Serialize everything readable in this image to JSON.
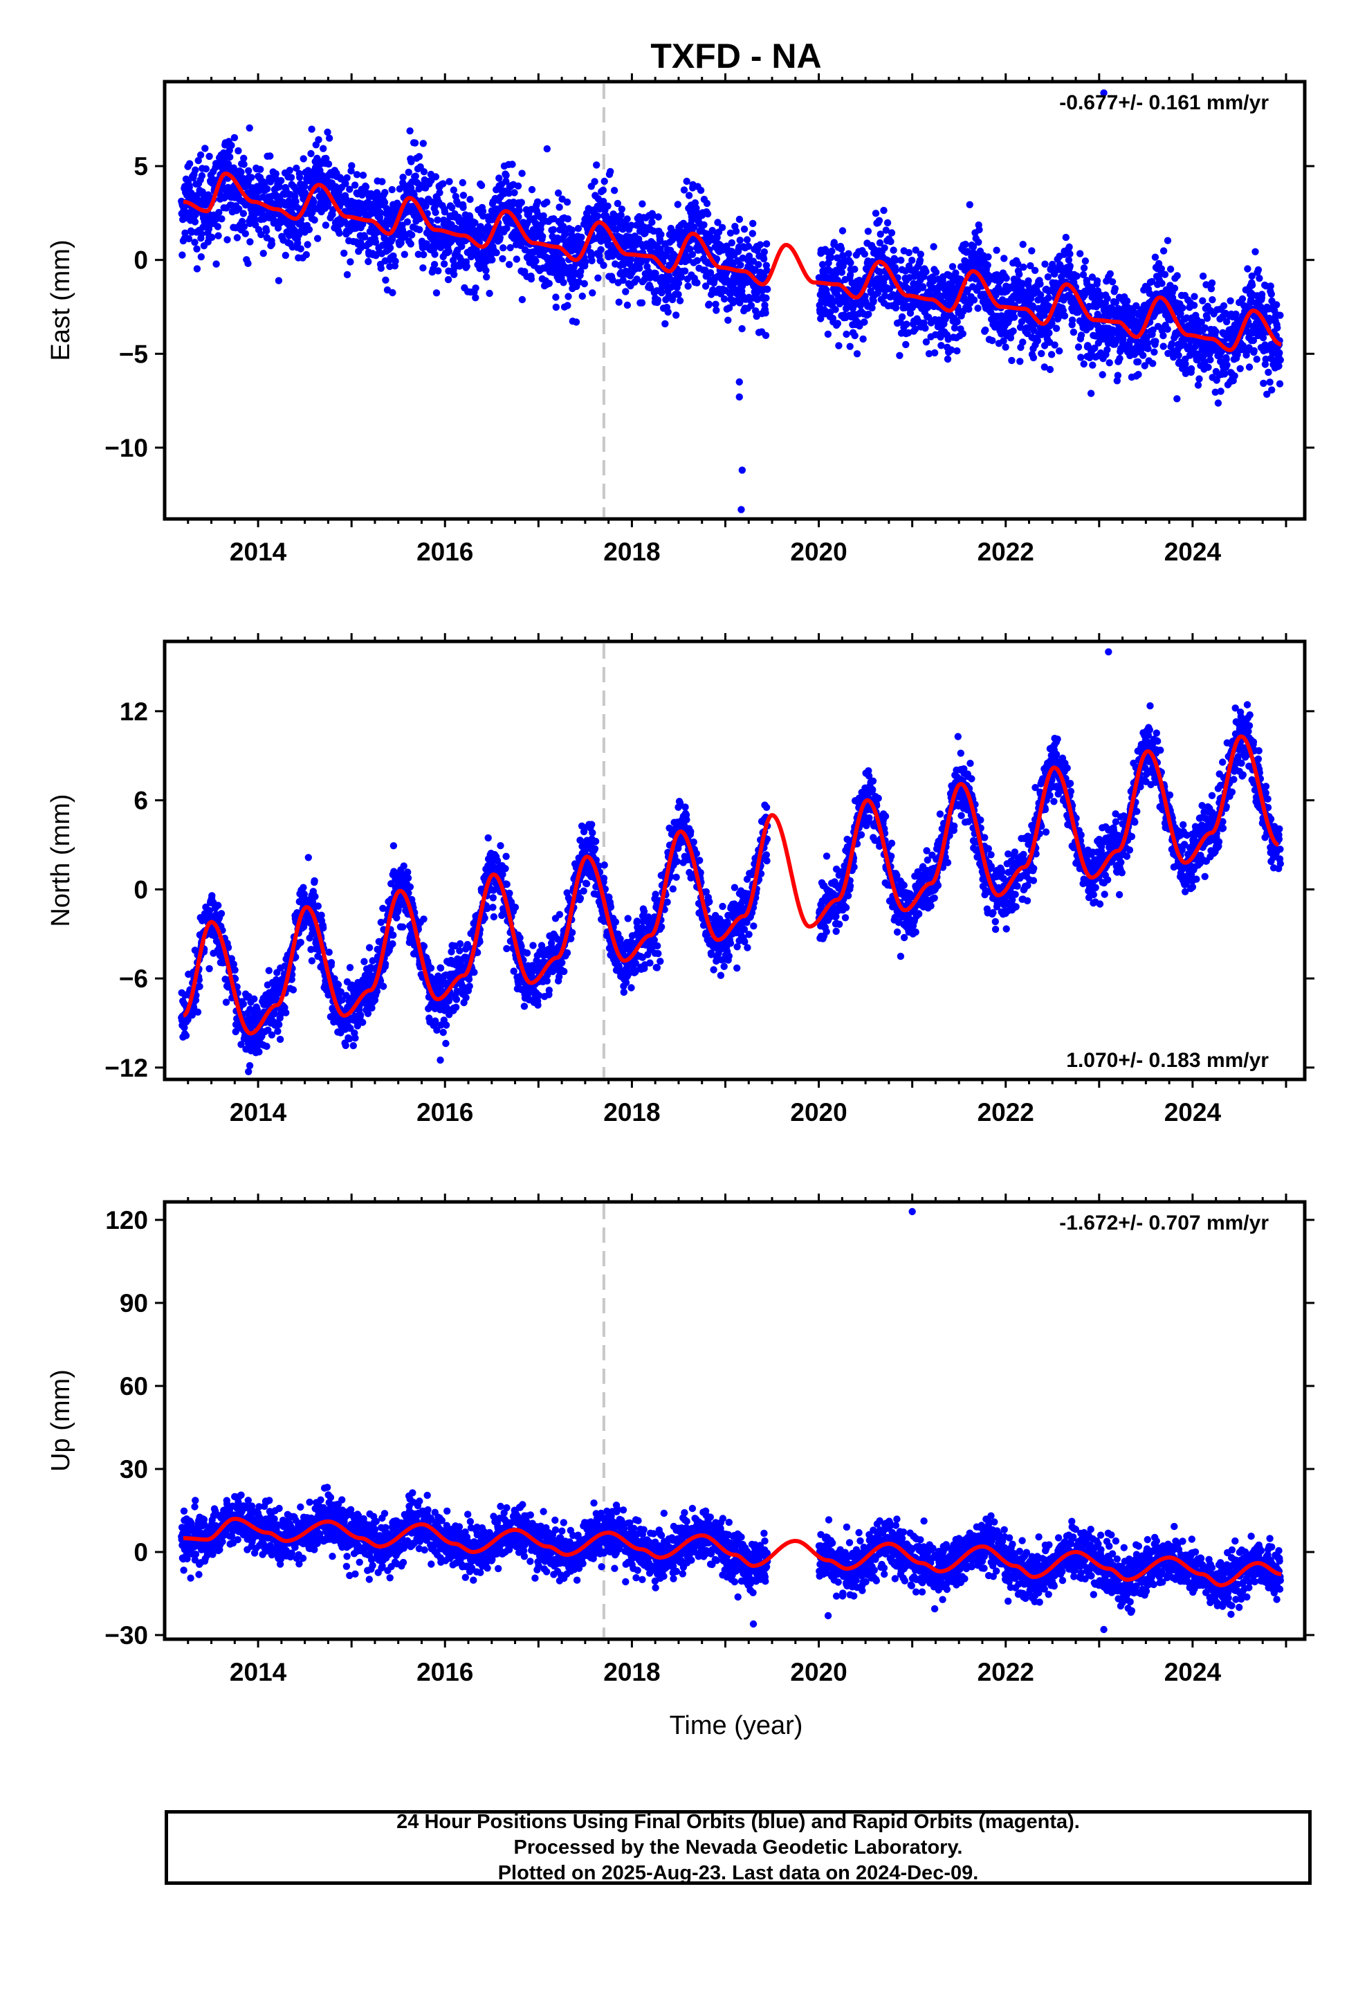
{
  "title": "TXFD - NA",
  "xlabel": "Time (year)",
  "caption": [
    "24 Hour Positions Using Final Orbits (blue) and Rapid Orbits (magenta).",
    "Processed by the Nevada Geodetic Laboratory.",
    "Plotted on 2025-Aug-23. Last data on 2024-Dec-09."
  ],
  "colors": {
    "final_orbits": "#0000ff",
    "model_fit": "#ff0000",
    "marker_line": "#c8c8c8"
  },
  "chart_data": [
    {
      "type": "scatter",
      "component": "East",
      "ylabel": "East (mm)",
      "rate_label": "-0.677+/- 0.161 mm/yr",
      "xlim": [
        2013.0,
        2025.2
      ],
      "ylim": [
        -13.8,
        9.5
      ],
      "yticks": [
        {
          "v": 5,
          "t": "5"
        },
        {
          "v": 0,
          "t": "0"
        },
        {
          "v": -5,
          "t": "−5"
        },
        {
          "v": -10,
          "t": "−10"
        }
      ],
      "marker_year": 2017.7,
      "trend": {
        "y2013": 3.0,
        "rate": -0.677
      },
      "seasonal_amp": 1.6,
      "seasonal_peak": 0.65,
      "scatter": 1.2,
      "gap": [
        2019.45,
        2020.0
      ],
      "outliers": [
        [
          2019.15,
          -6.5
        ],
        [
          2019.15,
          -7.3
        ],
        [
          2019.18,
          -11.2
        ],
        [
          2019.17,
          -13.3
        ],
        [
          2023.05,
          8.9
        ]
      ],
      "smooth": [
        [
          2013.2,
          3.1
        ],
        [
          2013.45,
          2.6
        ],
        [
          2013.65,
          4.6
        ],
        [
          2013.95,
          3.1
        ],
        [
          2014.2,
          2.7
        ],
        [
          2014.4,
          2.2
        ],
        [
          2014.65,
          4.0
        ],
        [
          2014.95,
          2.3
        ],
        [
          2015.2,
          2.1
        ],
        [
          2015.4,
          1.4
        ],
        [
          2015.62,
          3.3
        ],
        [
          2015.9,
          1.6
        ],
        [
          2016.2,
          1.3
        ],
        [
          2016.4,
          0.7
        ],
        [
          2016.65,
          2.6
        ],
        [
          2016.95,
          0.9
        ],
        [
          2017.2,
          0.7
        ],
        [
          2017.4,
          0.0
        ],
        [
          2017.65,
          2.0
        ],
        [
          2017.95,
          0.3
        ],
        [
          2018.2,
          0.2
        ],
        [
          2018.4,
          -0.6
        ],
        [
          2018.65,
          1.4
        ],
        [
          2018.95,
          -0.4
        ],
        [
          2019.2,
          -0.6
        ],
        [
          2019.4,
          -1.3
        ],
        [
          2019.65,
          0.8
        ],
        [
          2019.95,
          -1.2
        ],
        [
          2020.2,
          -1.3
        ],
        [
          2020.4,
          -2.0
        ],
        [
          2020.65,
          -0.1
        ],
        [
          2020.95,
          -1.9
        ],
        [
          2021.2,
          -2.1
        ],
        [
          2021.4,
          -2.7
        ],
        [
          2021.65,
          -0.6
        ],
        [
          2021.95,
          -2.5
        ],
        [
          2022.2,
          -2.6
        ],
        [
          2022.4,
          -3.4
        ],
        [
          2022.65,
          -1.3
        ],
        [
          2022.95,
          -3.2
        ],
        [
          2023.2,
          -3.3
        ],
        [
          2023.4,
          -4.1
        ],
        [
          2023.65,
          -2.0
        ],
        [
          2023.95,
          -4.0
        ],
        [
          2024.2,
          -4.2
        ],
        [
          2024.4,
          -4.8
        ],
        [
          2024.65,
          -2.7
        ],
        [
          2024.95,
          -4.5
        ]
      ]
    },
    {
      "type": "scatter",
      "component": "North",
      "ylabel": "North (mm)",
      "rate_label": "1.070+/- 0.183 mm/yr",
      "xlim": [
        2013.0,
        2025.2
      ],
      "ylim": [
        -12.8,
        16.7
      ],
      "yticks": [
        {
          "v": 12,
          "t": "12"
        },
        {
          "v": 6,
          "t": "6"
        },
        {
          "v": 0,
          "t": "0"
        },
        {
          "v": -6,
          "t": "−6"
        },
        {
          "v": -12,
          "t": "−12"
        }
      ],
      "marker_year": 2017.7,
      "trend": {
        "y2013": -6.0,
        "rate": 1.07
      },
      "seasonal_amp": 3.5,
      "seasonal_peak": 0.5,
      "scatter": 1.0,
      "gap": [
        2019.45,
        2020.0
      ],
      "outliers": [
        [
          2023.1,
          16.0
        ],
        [
          2015.95,
          -11.5
        ]
      ],
      "smooth": [
        [
          2013.2,
          -8.5
        ],
        [
          2013.5,
          -2.2
        ],
        [
          2013.92,
          -9.7
        ],
        [
          2014.2,
          -7.8
        ],
        [
          2014.52,
          -1.2
        ],
        [
          2014.92,
          -8.5
        ],
        [
          2015.2,
          -6.8
        ],
        [
          2015.52,
          -0.1
        ],
        [
          2015.92,
          -7.4
        ],
        [
          2016.2,
          -5.8
        ],
        [
          2016.52,
          1.0
        ],
        [
          2016.92,
          -6.3
        ],
        [
          2017.2,
          -4.6
        ],
        [
          2017.52,
          2.2
        ],
        [
          2017.92,
          -4.8
        ],
        [
          2018.2,
          -3.1
        ],
        [
          2018.52,
          3.9
        ],
        [
          2018.92,
          -3.4
        ],
        [
          2019.2,
          -1.8
        ],
        [
          2019.5,
          5.0
        ],
        [
          2019.9,
          -2.5
        ],
        [
          2020.2,
          -0.7
        ],
        [
          2020.52,
          6.0
        ],
        [
          2020.92,
          -1.4
        ],
        [
          2021.2,
          0.4
        ],
        [
          2021.52,
          7.1
        ],
        [
          2021.92,
          -0.4
        ],
        [
          2022.2,
          1.5
        ],
        [
          2022.52,
          8.2
        ],
        [
          2022.92,
          0.8
        ],
        [
          2023.2,
          2.6
        ],
        [
          2023.52,
          9.3
        ],
        [
          2023.92,
          1.8
        ],
        [
          2024.2,
          3.8
        ],
        [
          2024.52,
          10.3
        ],
        [
          2024.92,
          3.0
        ]
      ]
    },
    {
      "type": "scatter",
      "component": "Up",
      "ylabel": "Up (mm)",
      "rate_label": "-1.672+/- 0.707 mm/yr",
      "xlim": [
        2013.0,
        2025.2
      ],
      "ylim": [
        -31.5,
        126.5
      ],
      "yticks": [
        {
          "v": 120,
          "t": "120"
        },
        {
          "v": 90,
          "t": "90"
        },
        {
          "v": 60,
          "t": "60"
        },
        {
          "v": 30,
          "t": "30"
        },
        {
          "v": 0,
          "t": "0"
        },
        {
          "v": -30,
          "t": "−30"
        }
      ],
      "marker_year": 2017.7,
      "trend": {
        "y2013": 8.0,
        "rate": -1.672
      },
      "seasonal_amp": 4.5,
      "seasonal_peak": 0.8,
      "scatter": 4.5,
      "gap": [
        2019.45,
        2020.0
      ],
      "outliers": [
        [
          2021.0,
          123.0
        ],
        [
          2023.05,
          -28.0
        ],
        [
          2019.3,
          -26.0
        ],
        [
          2020.1,
          -23.0
        ]
      ],
      "smooth": [
        [
          2013.2,
          5.0
        ],
        [
          2013.45,
          4.5
        ],
        [
          2013.75,
          12.0
        ],
        [
          2014.1,
          7.0
        ],
        [
          2014.3,
          4.0
        ],
        [
          2014.75,
          11.0
        ],
        [
          2015.1,
          5.0
        ],
        [
          2015.3,
          2.0
        ],
        [
          2015.75,
          10.0
        ],
        [
          2016.1,
          3.0
        ],
        [
          2016.3,
          0.0
        ],
        [
          2016.75,
          8.0
        ],
        [
          2017.1,
          2.0
        ],
        [
          2017.3,
          -1.0
        ],
        [
          2017.75,
          7.0
        ],
        [
          2018.1,
          1.0
        ],
        [
          2018.3,
          -2.0
        ],
        [
          2018.75,
          6.0
        ],
        [
          2019.1,
          -1.0
        ],
        [
          2019.3,
          -5.0
        ],
        [
          2019.75,
          4.0
        ],
        [
          2020.1,
          -3.0
        ],
        [
          2020.3,
          -6.0
        ],
        [
          2020.75,
          3.0
        ],
        [
          2021.1,
          -4.0
        ],
        [
          2021.3,
          -7.0
        ],
        [
          2021.75,
          2.0
        ],
        [
          2022.1,
          -5.0
        ],
        [
          2022.3,
          -9.0
        ],
        [
          2022.75,
          0.0
        ],
        [
          2023.1,
          -6.0
        ],
        [
          2023.3,
          -10.0
        ],
        [
          2023.75,
          -2.0
        ],
        [
          2024.1,
          -8.0
        ],
        [
          2024.3,
          -12.0
        ],
        [
          2024.7,
          -4.0
        ],
        [
          2024.95,
          -8.0
        ]
      ]
    }
  ],
  "xticks": [
    {
      "v": 2014,
      "t": "2014"
    },
    {
      "v": 2016,
      "t": "2016"
    },
    {
      "v": 2018,
      "t": "2018"
    },
    {
      "v": 2020,
      "t": "2020"
    },
    {
      "v": 2022,
      "t": "2022"
    },
    {
      "v": 2024,
      "t": "2024"
    }
  ]
}
